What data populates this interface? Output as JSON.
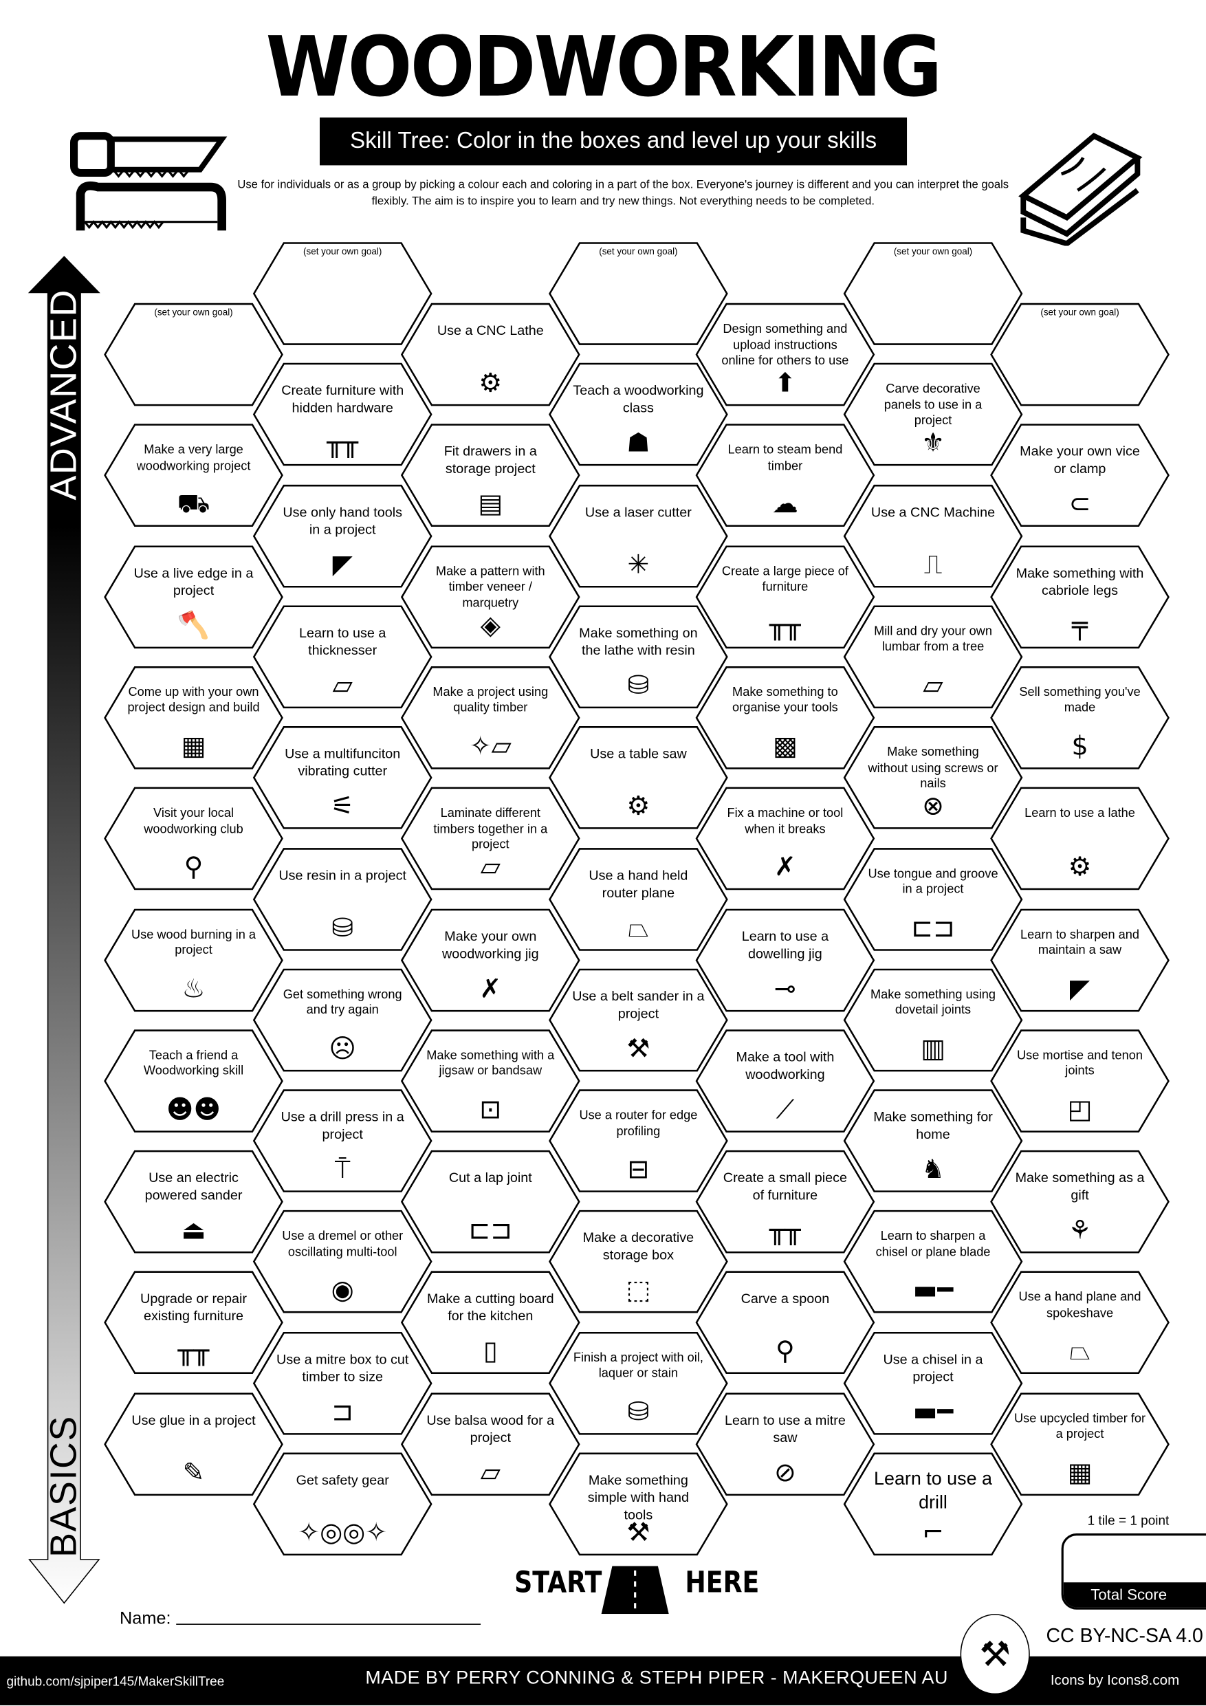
{
  "header": {
    "title": "WOODWORKING",
    "subtitle": "Skill Tree:  Color in the boxes and level up your skills",
    "intro": "Use for individuals or as a group by picking a colour each and coloring in a part of the box.  Everyone's journey is different and you can interpret the goals flexibly.  The aim is to inspire you to learn and try new things. Not everything needs to be completed."
  },
  "axis": {
    "top_label": "ADVANCED",
    "bottom_label": "BASICS"
  },
  "columns": [
    [
      {
        "goal": "(set your own goal)"
      },
      {
        "text": "Make a very large woodworking project",
        "icon": "person-carrying-icon",
        "small": true
      },
      {
        "text": "Use a live edge in a project",
        "icon": "log-axe-icon"
      },
      {
        "text": "Come up with your own project design and build",
        "icon": "blueprint-icon",
        "small": true
      },
      {
        "text": "Visit your local woodworking club",
        "icon": "location-pin-icon",
        "small": true
      },
      {
        "text": "Use wood burning in a project",
        "icon": "fire-icon",
        "small": true
      },
      {
        "text": "Teach a friend a Woodworking skill",
        "icon": "people-laptop-icon",
        "small": true
      },
      {
        "text": "Use an electric powered sander",
        "icon": "sander-icon"
      },
      {
        "text": "Upgrade or repair existing furniture",
        "icon": "table-icon"
      },
      {
        "text": "Use glue in a project",
        "icon": "glue-icon"
      }
    ],
    [
      {
        "goal": "(set your own goal)"
      },
      {
        "text": "Create furniture with hidden hardware",
        "icon": "table-icon"
      },
      {
        "text": "Use only hand tools in a project",
        "icon": "hand-saw-icon"
      },
      {
        "text": "Learn to use a thicknesser",
        "icon": "planks-icon"
      },
      {
        "text": "Use a multifunciton vibrating cutter",
        "icon": "multitool-icon"
      },
      {
        "text": "Use resin in a project",
        "icon": "paint-can-icon"
      },
      {
        "text": "Get something wrong and try again",
        "icon": "sad-frame-icon",
        "small": true
      },
      {
        "text": "Use a drill press in a project",
        "icon": "drill-press-icon"
      },
      {
        "text": "Use a dremel or other oscillating multi-tool",
        "icon": "dremel-icon",
        "small": true
      },
      {
        "text": "Use a mitre box to cut timber to size",
        "icon": "mitre-box-icon"
      },
      {
        "text": "Get safety gear",
        "icon": "safety-goggles-icon"
      }
    ],
    [
      {
        "text": "Use a CNC Lathe",
        "icon": "lathe-icon"
      },
      {
        "text": "Fit drawers in a storage project",
        "icon": "drawers-icon"
      },
      {
        "text": "Make a pattern with timber veneer / marquetry",
        "icon": "pattern-icon",
        "small": true
      },
      {
        "text": "Make a project using quality timber",
        "icon": "sparkle-planks-icon",
        "small": true
      },
      {
        "text": "Laminate different timbers together in a project",
        "icon": "planks-icon",
        "small": true
      },
      {
        "text": "Make your own woodworking jig",
        "icon": "wrench-screwdriver-icon"
      },
      {
        "text": "Make something with a jigsaw or bandsaw",
        "icon": "jigsaw-icon",
        "small": true
      },
      {
        "text": "Cut a lap joint",
        "icon": "lap-joint-icon"
      },
      {
        "text": "Make a cutting board for the kitchen",
        "icon": "cutting-board-icon"
      },
      {
        "text": "Use balsa wood for a project",
        "icon": "planks-icon"
      }
    ],
    [
      {
        "goal": "(set your own goal)"
      },
      {
        "text": "Teach a woodworking class",
        "icon": "teacher-icon"
      },
      {
        "text": "Use a laser cutter",
        "icon": "laser-icon"
      },
      {
        "text": "Make something on the lathe with resin",
        "icon": "paint-can-icon"
      },
      {
        "text": "Use a table saw",
        "icon": "saw-blade-icon"
      },
      {
        "text": "Use a hand held router plane",
        "icon": "hand-plane-icon"
      },
      {
        "text": "Use a belt sander in a project",
        "icon": "belt-sander-icon"
      },
      {
        "text": "Use a router for edge profiling",
        "icon": "toolbox-icon",
        "small": true
      },
      {
        "text": "Make a decorative storage box",
        "icon": "box-icon"
      },
      {
        "text": "Finish a project with oil,  laquer or stain",
        "icon": "paint-can-icon",
        "small": true
      },
      {
        "text": "Make something simple with hand tools",
        "icon": "hammer-icon"
      }
    ],
    [
      {
        "text": "Design something and upload instructions online for others to use",
        "icon": "upload-icon",
        "small": true
      },
      {
        "text": "Learn to steam bend timber",
        "icon": "steam-icon",
        "small": true
      },
      {
        "text": "Create a large piece of furniture",
        "icon": "table-icon",
        "small": true
      },
      {
        "text": "Make something to organise your tools",
        "icon": "pegboard-icon",
        "small": true
      },
      {
        "text": "Fix a machine or tool when it breaks",
        "icon": "wrench-screwdriver-icon",
        "small": true
      },
      {
        "text": "Learn to use a dowelling jig",
        "icon": "dowel-icon"
      },
      {
        "text": "Make a tool with woodworking",
        "icon": "spatula-icon"
      },
      {
        "text": "Create a small piece of furniture",
        "icon": "table-icon"
      },
      {
        "text": "Carve a spoon",
        "icon": "spoon-icon"
      },
      {
        "text": "Learn to use a mitre saw",
        "icon": "mitre-saw-icon"
      }
    ],
    [
      {
        "goal": "(set your own goal)"
      },
      {
        "text": "Carve decorative panels to use in a project",
        "icon": "fleur-de-lis-icon",
        "small": true
      },
      {
        "text": "Use a CNC Machine",
        "icon": "cnc-machine-icon"
      },
      {
        "text": "Mill and dry your own lumbar from a tree",
        "icon": "planks-icon",
        "small": true
      },
      {
        "text": "Make something without using screws or nails",
        "icon": "no-screws-icon",
        "small": true
      },
      {
        "text": "Use tongue and groove in a project",
        "icon": "tongue-groove-icon",
        "small": true
      },
      {
        "text": "Make something using dovetail joints",
        "icon": "dovetail-icon",
        "small": true
      },
      {
        "text": "Make something for home",
        "icon": "cat-figurine-icon"
      },
      {
        "text": "Learn to sharpen a chisel or plane blade",
        "icon": "chisel-icon",
        "small": true
      },
      {
        "text": "Use a chisel in a project",
        "icon": "chisel-icon"
      },
      {
        "text": "Learn to use a drill",
        "icon": "drill-icon",
        "big": true
      }
    ],
    [
      {
        "goal": "(set your own goal)"
      },
      {
        "text": "Make your own vice or clamp",
        "icon": "clamp-icon"
      },
      {
        "text": "Make something with cabriole legs",
        "icon": "cabriole-table-icon"
      },
      {
        "text": "Sell something you've made",
        "icon": "dollar-icon",
        "small": true
      },
      {
        "text": "Learn to use a lathe",
        "icon": "lathe-icon",
        "small": true
      },
      {
        "text": "Learn to sharpen and maintain a saw",
        "icon": "hand-saw-icon",
        "small": true
      },
      {
        "text": "Use mortise and tenon joints",
        "icon": "mortise-tenon-icon",
        "small": true
      },
      {
        "text": "Make something as a gift",
        "icon": "gift-bow-icon"
      },
      {
        "text": "Use a hand plane and spokeshave",
        "icon": "hand-plane-icon",
        "small": true
      },
      {
        "text": "Use upcycled timber for a project",
        "icon": "crate-icon",
        "small": true
      }
    ]
  ],
  "start": {
    "left": "START",
    "right": "HERE"
  },
  "name_label": "Name:",
  "score": {
    "rule": "1 tile = 1 point",
    "label": "Total Score"
  },
  "license": "CC BY-NC-SA 4.0",
  "footer": {
    "github": "github.com/sjpiper145/MakerSkillTree",
    "credits": "MADE BY PERRY CONNING & STEPH PIPER  -  MAKERQUEEN AU",
    "icons": "Icons by Icons8.com"
  }
}
